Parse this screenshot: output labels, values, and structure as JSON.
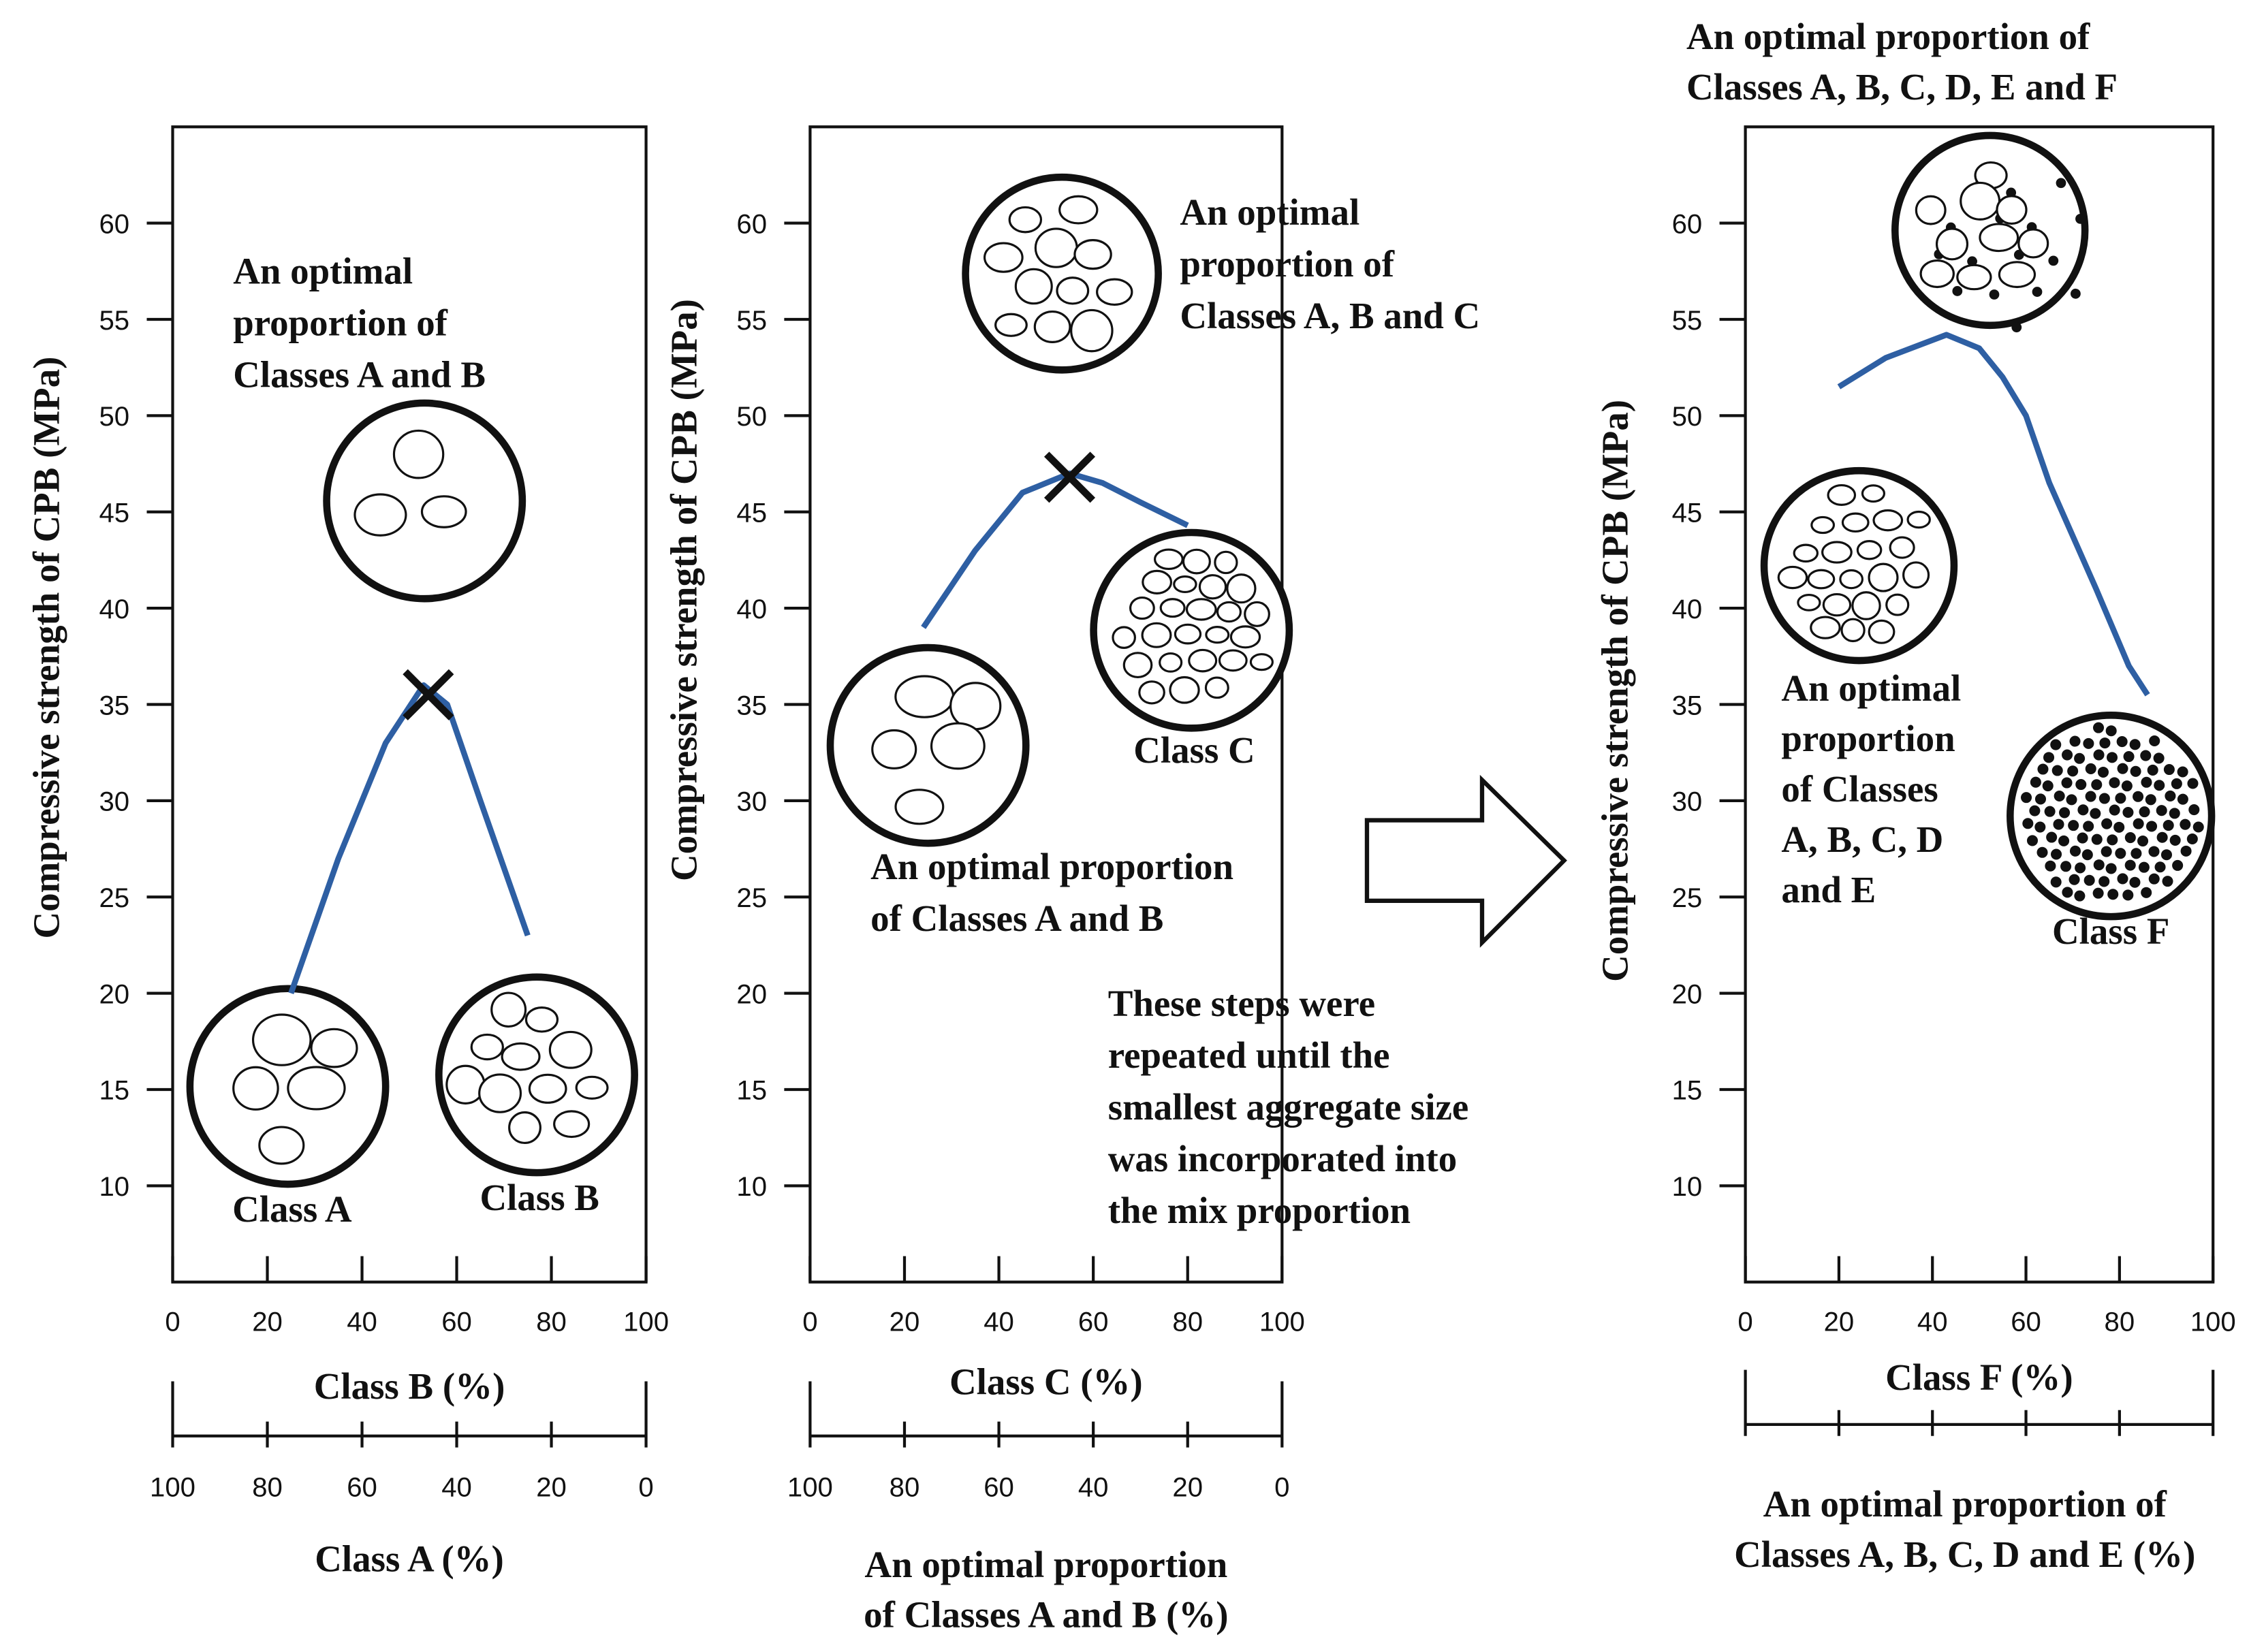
{
  "chart_data": [
    {
      "type": "line",
      "x_label": "Class B (%)",
      "y_label": "Compressive strength of CPB (MPa)",
      "xlim": [
        0,
        100
      ],
      "xticks": [
        0,
        20,
        40,
        60,
        80,
        100
      ],
      "ylim": [
        5,
        65
      ],
      "yticks": [
        10,
        15,
        20,
        25,
        30,
        35,
        40,
        45,
        50,
        55,
        60
      ],
      "x2lim": [
        100,
        0
      ],
      "x2ticks": [
        100,
        80,
        60,
        40,
        20,
        0
      ],
      "x2ticklabels": true,
      "x2_label": [
        "Class A (%)"
      ],
      "x": [
        25,
        35,
        45,
        53,
        58,
        65,
        75
      ],
      "series": [
        {
          "color": "#2e5fa3",
          "values": [
            20,
            27,
            33,
            36,
            35,
            30,
            23
          ]
        }
      ],
      "peak": {
        "x": 54,
        "y": 35.5
      },
      "annotations": [
        {
          "lines": [
            "An optimal",
            "proportion of",
            "Classes A and B"
          ]
        },
        {
          "lines": [
            "Class A"
          ]
        },
        {
          "lines": [
            "Class B"
          ]
        }
      ]
    },
    {
      "type": "line",
      "x_label": "Class C (%)",
      "y_label": "Compressive strength of CPB (MPa)",
      "xlim": [
        0,
        100
      ],
      "xticks": [
        0,
        20,
        40,
        60,
        80,
        100
      ],
      "ylim": [
        5,
        65
      ],
      "yticks": [
        10,
        15,
        20,
        25,
        30,
        35,
        40,
        45,
        50,
        55,
        60
      ],
      "x2lim": [
        100,
        0
      ],
      "x2ticks": [
        100,
        80,
        60,
        40,
        20,
        0
      ],
      "x2ticklabels": true,
      "x2_label": [
        "An optimal proportion",
        "of Classes A and B (%)"
      ],
      "x": [
        24,
        35,
        45,
        55,
        62,
        70,
        80
      ],
      "series": [
        {
          "color": "#2e5fa3",
          "values": [
            39,
            43,
            46,
            47,
            46.5,
            45.5,
            44.3
          ]
        }
      ],
      "peak": {
        "x": 55,
        "y": 46.8
      },
      "annotations": [
        {
          "lines": [
            "An optimal",
            "proportion of",
            "Classes A, B and C"
          ]
        },
        {
          "lines": [
            "Class C"
          ]
        },
        {
          "lines": [
            "An optimal proportion",
            "of Classes A and B"
          ]
        },
        {
          "lines": [
            "These steps were",
            "repeated until the",
            "smallest aggregate size",
            "was incorporated into",
            "the mix proportion"
          ]
        }
      ]
    },
    {
      "type": "line",
      "x_label": "Class F (%)",
      "y_label": "Compressive strength of CPB (MPa)",
      "xlim": [
        0,
        100
      ],
      "xticks": [
        0,
        20,
        40,
        60,
        80,
        100
      ],
      "ylim": [
        5,
        65
      ],
      "yticks": [
        10,
        15,
        20,
        25,
        30,
        35,
        40,
        45,
        50,
        55,
        60
      ],
      "x2lim": [
        100,
        0
      ],
      "x2ticks": [
        100,
        80,
        60,
        40,
        20,
        0
      ],
      "x2ticklabels": false,
      "x2_label": [
        "An optimal proportion of",
        "Classes A, B, C, D and E (%)"
      ],
      "x": [
        20,
        30,
        43,
        50,
        55,
        60,
        65,
        75,
        82,
        86
      ],
      "series": [
        {
          "color": "#2e5fa3",
          "values": [
            51.5,
            53,
            54.2,
            53.5,
            52,
            50,
            46.5,
            41,
            37,
            35.5
          ]
        }
      ],
      "annotations": [
        {
          "lines": [
            "An optimal proportion of",
            "Classes A, B, C, D, E and F"
          ]
        },
        {
          "lines": [
            "An optimal",
            "proportion",
            "of Classes",
            "A, B, C, D",
            "and E"
          ]
        },
        {
          "lines": [
            "Class F"
          ]
        }
      ]
    }
  ]
}
